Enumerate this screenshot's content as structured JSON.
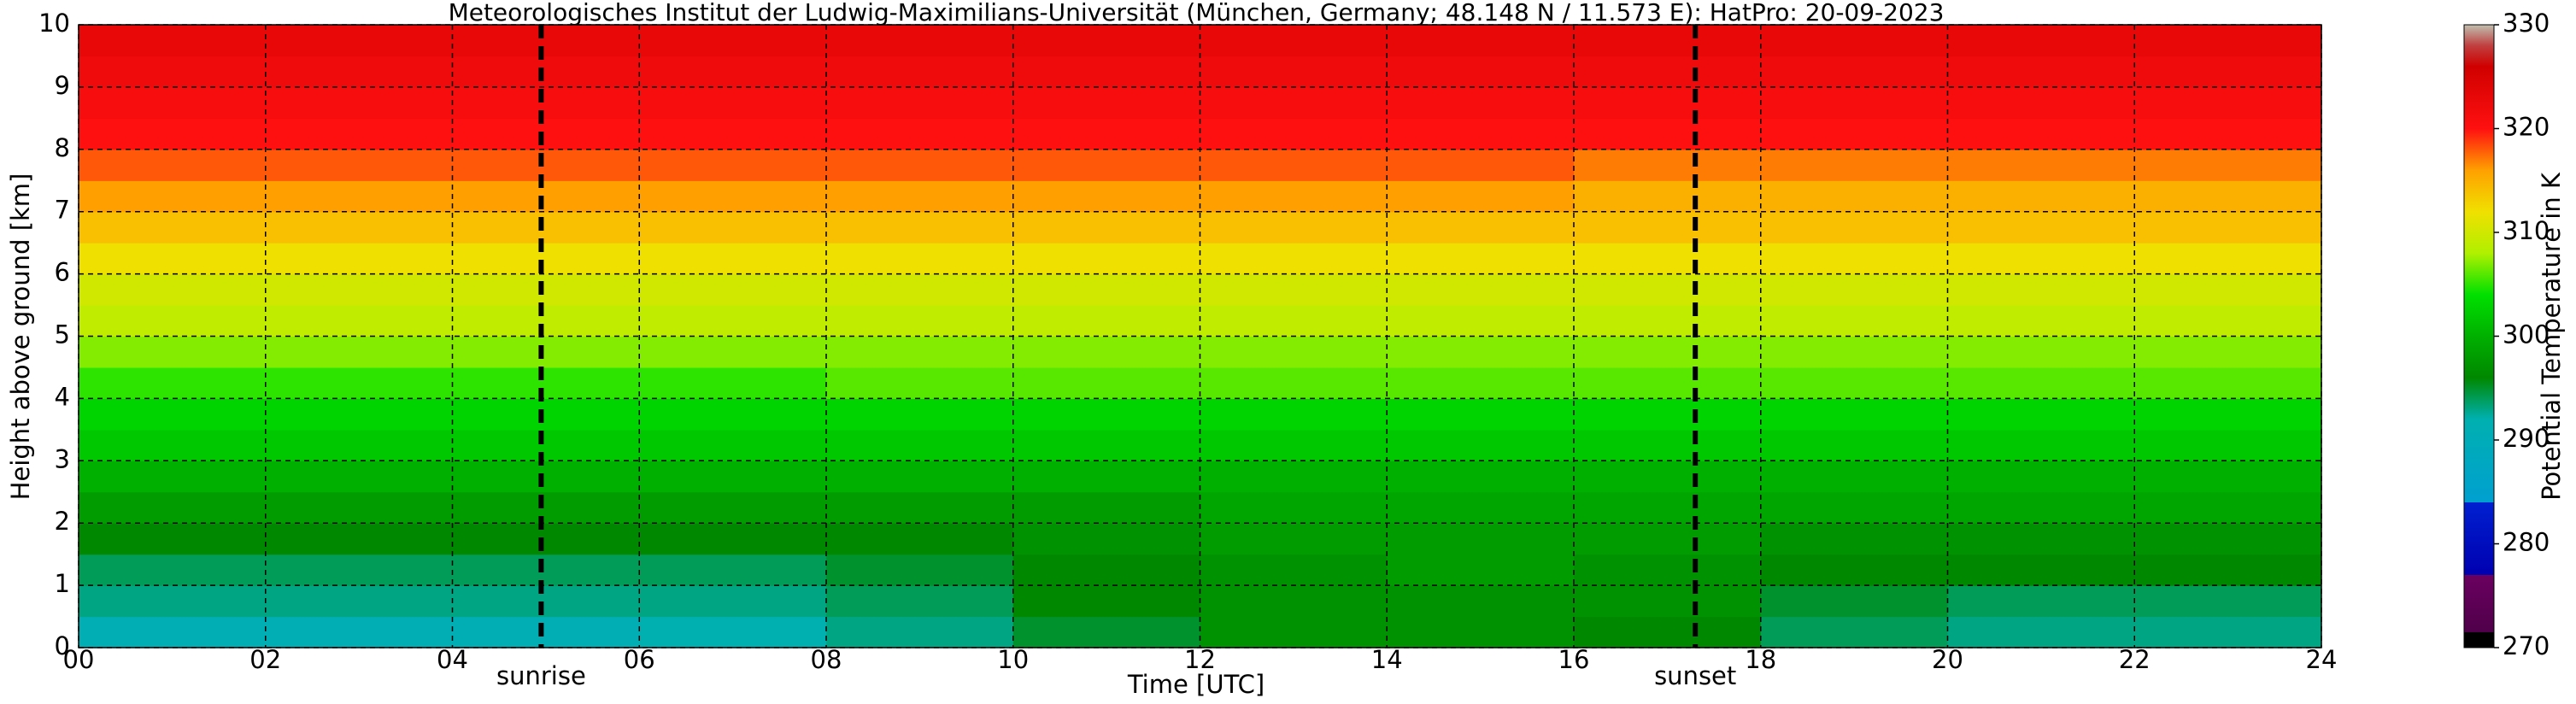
{
  "chart_data": {
    "type": "heatmap",
    "title": "Meteorologisches Institut der Ludwig-Maximilians-Universität (München, Germany; 48.148 N / 11.573 E):    HatPro: 20-09-2023",
    "xlabel": "Time [UTC]",
    "ylabel": "Height above ground [km]",
    "colorbar_label": "Potential Temperature in K",
    "x": [
      1,
      3,
      5,
      7,
      9,
      11,
      13,
      15,
      17,
      19,
      21,
      23
    ],
    "y": [
      0.25,
      0.75,
      1.25,
      1.75,
      2.25,
      2.75,
      3.25,
      3.75,
      4.25,
      4.75,
      5.25,
      5.75,
      6.25,
      6.75,
      7.25,
      7.75,
      8.25,
      8.75,
      9.25,
      9.75
    ],
    "z": [
      [
        291,
        291,
        291,
        292,
        293,
        295,
        297,
        297,
        296,
        294,
        293,
        293
      ],
      [
        293,
        293,
        293,
        293,
        294,
        296,
        297,
        297,
        297,
        295,
        294,
        294
      ],
      [
        294,
        294,
        294,
        294,
        295,
        296,
        297,
        298,
        297,
        296,
        296,
        296
      ],
      [
        296,
        296,
        296,
        296,
        296,
        297,
        298,
        298,
        298,
        297,
        297,
        297
      ],
      [
        298,
        298,
        298,
        298,
        298,
        298,
        299,
        299,
        299,
        299,
        299,
        299
      ],
      [
        300,
        300,
        300,
        300,
        300,
        300,
        300,
        300,
        300,
        300,
        300,
        300
      ],
      [
        302,
        302,
        302,
        302,
        302,
        302,
        302,
        302,
        302,
        302,
        302,
        302
      ],
      [
        303,
        303,
        303,
        303,
        303,
        303,
        303,
        303,
        303,
        303,
        303,
        303
      ],
      [
        305,
        305,
        305,
        305,
        306,
        306,
        306,
        306,
        306,
        306,
        306,
        306
      ],
      [
        307,
        307,
        307,
        307,
        307,
        307,
        307,
        307,
        307,
        307,
        307,
        307
      ],
      [
        309,
        309,
        309,
        309,
        309,
        309,
        309,
        309,
        309,
        309,
        309,
        309
      ],
      [
        310,
        310,
        310,
        310,
        310,
        310,
        310,
        310,
        310,
        310,
        310,
        310
      ],
      [
        312,
        312,
        312,
        312,
        312,
        312,
        312,
        312,
        312,
        312,
        312,
        312
      ],
      [
        314,
        314,
        314,
        314,
        314,
        314,
        314,
        314,
        314,
        314,
        314,
        314
      ],
      [
        316,
        316,
        316,
        316,
        316,
        316,
        316,
        316,
        315,
        315,
        315,
        315
      ],
      [
        318,
        318,
        318,
        318,
        318,
        318,
        318,
        318,
        317,
        317,
        317,
        317
      ],
      [
        320,
        320,
        320,
        320,
        320,
        320,
        320,
        320,
        320,
        320,
        320,
        320
      ],
      [
        321,
        321,
        321,
        321,
        321,
        321,
        321,
        321,
        321,
        321,
        321,
        321
      ],
      [
        322,
        322,
        322,
        322,
        322,
        322,
        322,
        322,
        322,
        322,
        322,
        322
      ],
      [
        323,
        323,
        323,
        323,
        323,
        323,
        323,
        323,
        323,
        323,
        323,
        323
      ]
    ],
    "xlim": [
      0,
      24
    ],
    "ylim": [
      0,
      10
    ],
    "xticks": [
      {
        "value": 0,
        "label": "00"
      },
      {
        "value": 2,
        "label": "02"
      },
      {
        "value": 4,
        "label": "04"
      },
      {
        "value": 6,
        "label": "06"
      },
      {
        "value": 8,
        "label": "08"
      },
      10,
      12,
      14,
      16,
      18,
      20,
      22,
      24
    ],
    "yticks": [
      0,
      1,
      2,
      3,
      4,
      5,
      6,
      7,
      8,
      9,
      10
    ],
    "clim": [
      270,
      330
    ],
    "cticks": [
      270,
      280,
      290,
      300,
      310,
      320,
      330
    ],
    "colorscale": [
      [
        270,
        "#000000"
      ],
      [
        271.5,
        "#000000"
      ],
      [
        271.5,
        "#50004a"
      ],
      [
        277,
        "#6a0060"
      ],
      [
        277,
        "#0000b0"
      ],
      [
        284,
        "#0020d0"
      ],
      [
        284,
        "#00a0d0"
      ],
      [
        292,
        "#00b0b0"
      ],
      [
        296,
        "#008800"
      ],
      [
        300,
        "#00b000"
      ],
      [
        304,
        "#00e000"
      ],
      [
        308,
        "#b0f000"
      ],
      [
        312,
        "#f0e000"
      ],
      [
        316,
        "#ffa000"
      ],
      [
        320,
        "#ff1010"
      ],
      [
        326,
        "#d00000"
      ],
      [
        328,
        "#c04040"
      ],
      [
        330,
        "#c0c0b0"
      ]
    ],
    "grid": true,
    "annotations": [
      {
        "text": "sunrise",
        "x": 4.95
      },
      {
        "text": "sunset",
        "x": 17.3
      }
    ]
  }
}
